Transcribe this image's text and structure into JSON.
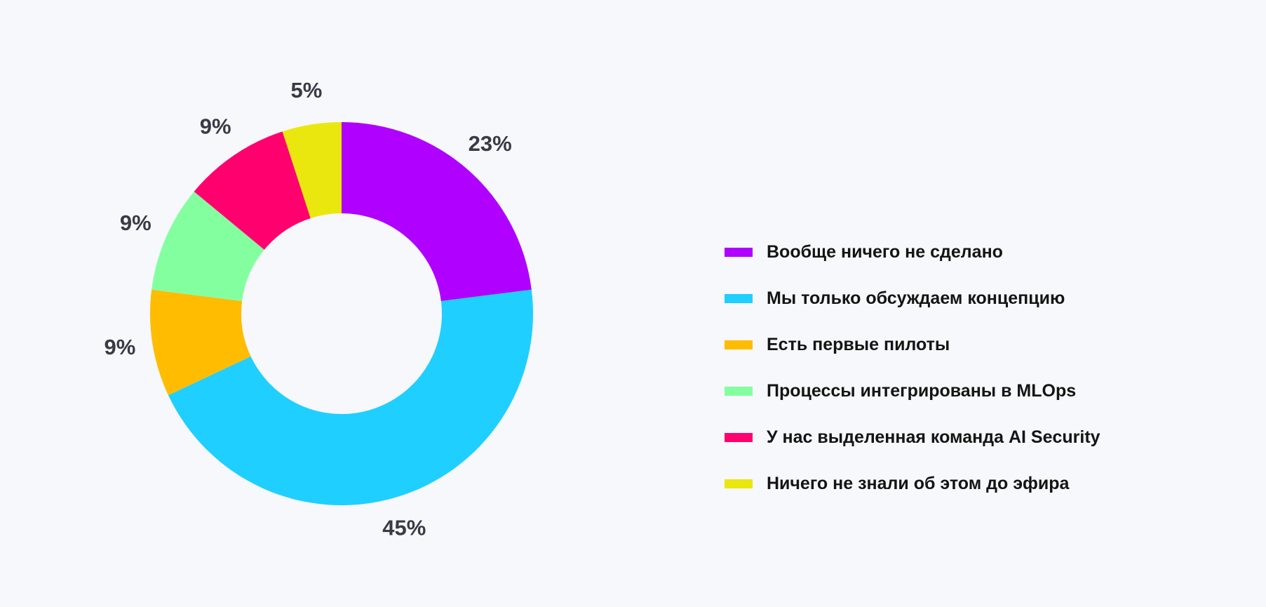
{
  "chart_data": {
    "type": "pie",
    "variant": "donut",
    "title": "",
    "start": "top",
    "direction": "clockwise",
    "slices": [
      {
        "label": "Вообще ничего не сделано",
        "value": 23,
        "value_label": "23%",
        "color": "#b000ff"
      },
      {
        "label": "Мы только обсуждаем концепцию",
        "value": 45,
        "value_label": "45%",
        "color": "#1fcfff"
      },
      {
        "label": "Есть первые пилоты",
        "value": 9,
        "value_label": "9%",
        "color": "#ffbc00"
      },
      {
        "label": "Процессы интегрированы в MLOps",
        "value": 9,
        "value_label": "9%",
        "color": "#84ffa0"
      },
      {
        "label": "У нас выделенная команда AI Security",
        "value": 9,
        "value_label": "9%",
        "color": "#ff006e"
      },
      {
        "label": "Ничего не знали об этом до эфира",
        "value": 5,
        "value_label": "5%",
        "color": "#eae70e"
      }
    ],
    "legend_position": "right"
  }
}
